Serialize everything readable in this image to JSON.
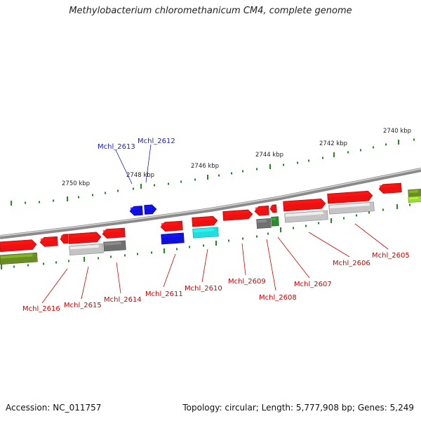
{
  "title": "Methylobacterium chloromethanicum CM4, complete genome",
  "footer": {
    "accession": "Accession: NC_011757",
    "summary": "Topology: circular; Length: 5,777,908 bp; Genes: 5,249"
  },
  "colors": {
    "backbone": "#8a8a8a",
    "tick": "#228822",
    "label_red": "#cc0000",
    "label_blue": "#1a1acc",
    "gene_red": "#ee1111",
    "gene_blue": "#1010dd",
    "gene_cyan": "#22dddd",
    "gene_lightgray": "#c4c4c4",
    "gene_darkgray": "#707070",
    "gene_green": "#2e8b2e",
    "gene_olive": "#6b8e23",
    "gene_lime": "#99dd33"
  },
  "kbp_labels": [
    "2750 kbp",
    "2748 kbp",
    "2746 kbp",
    "2744 kbp",
    "2742 kbp",
    "2740 kbp"
  ],
  "gene_labels": {
    "top": [
      "Mchl_2613",
      "Mchl_2612"
    ],
    "bottom": [
      "Mchl_2616",
      "Mchl_2615",
      "Mchl_2614",
      "Mchl_2611",
      "Mchl_2610",
      "Mchl_2609",
      "Mchl_2608",
      "Mchl_2607",
      "Mchl_2606",
      "Mchl_2605"
    ]
  }
}
